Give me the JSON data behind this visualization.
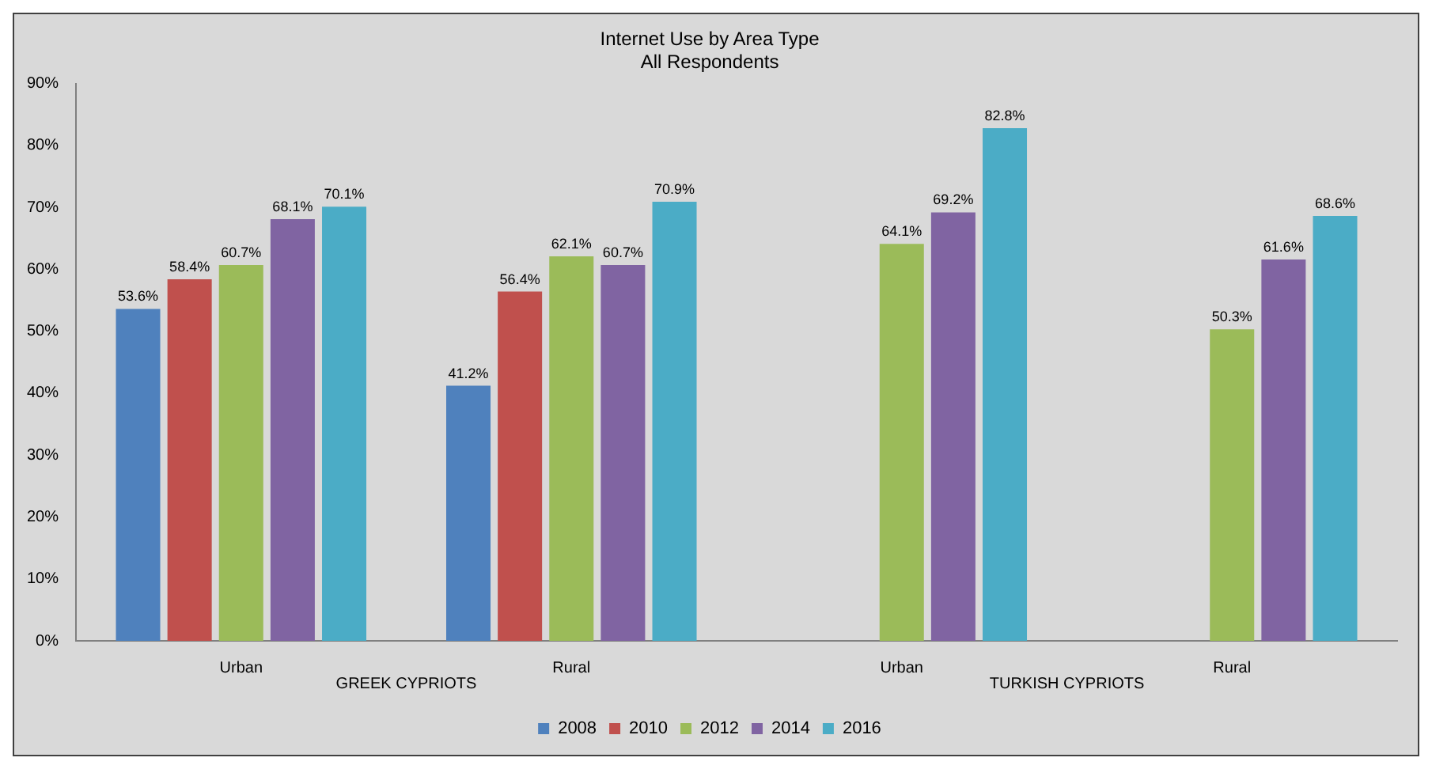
{
  "chart_data": {
    "type": "bar",
    "title": "Internet Use by Area Type",
    "subtitle": "All Respondents",
    "categories": [
      "Urban",
      "Rural",
      "Urban",
      "Rural"
    ],
    "annotations": [
      "GREEK CYPRIOTS",
      "TURKISH CYPRIOTS"
    ],
    "series": [
      {
        "name": "2008",
        "color": "#4f81bd",
        "values": [
          53.6,
          41.2,
          null,
          null
        ],
        "value_labels": [
          "53.6%",
          "41.2%",
          null,
          null
        ]
      },
      {
        "name": "2010",
        "color": "#c0504d",
        "values": [
          58.4,
          56.4,
          null,
          null
        ],
        "value_labels": [
          "58.4%",
          "56.4%",
          null,
          null
        ]
      },
      {
        "name": "2012",
        "color": "#9bbb59",
        "values": [
          60.7,
          62.1,
          64.1,
          50.3
        ],
        "value_labels": [
          "60.7%",
          "62.1%",
          "64.1%",
          "50.3%"
        ]
      },
      {
        "name": "2014",
        "color": "#8064a2",
        "values": [
          68.1,
          60.7,
          69.2,
          61.6
        ],
        "value_labels": [
          "68.1%",
          "60.7%",
          "69.2%",
          "61.6%"
        ]
      },
      {
        "name": "2016",
        "color": "#4bacc6",
        "values": [
          70.1,
          70.9,
          82.8,
          68.6
        ],
        "value_labels": [
          "70.1%",
          "70.9%",
          "82.8%",
          "68.6%"
        ]
      }
    ],
    "ylim": [
      0,
      90
    ],
    "yticks": [
      {
        "value": 0,
        "label": "0%"
      },
      {
        "value": 10,
        "label": "10%"
      },
      {
        "value": 20,
        "label": "20%"
      },
      {
        "value": 30,
        "label": "30%"
      },
      {
        "value": 40,
        "label": "40%"
      },
      {
        "value": 50,
        "label": "50%"
      },
      {
        "value": 60,
        "label": "60%"
      },
      {
        "value": 70,
        "label": "70%"
      },
      {
        "value": 80,
        "label": "80%"
      },
      {
        "value": 90,
        "label": "90%"
      }
    ],
    "grid": false,
    "legend": "bottom"
  }
}
